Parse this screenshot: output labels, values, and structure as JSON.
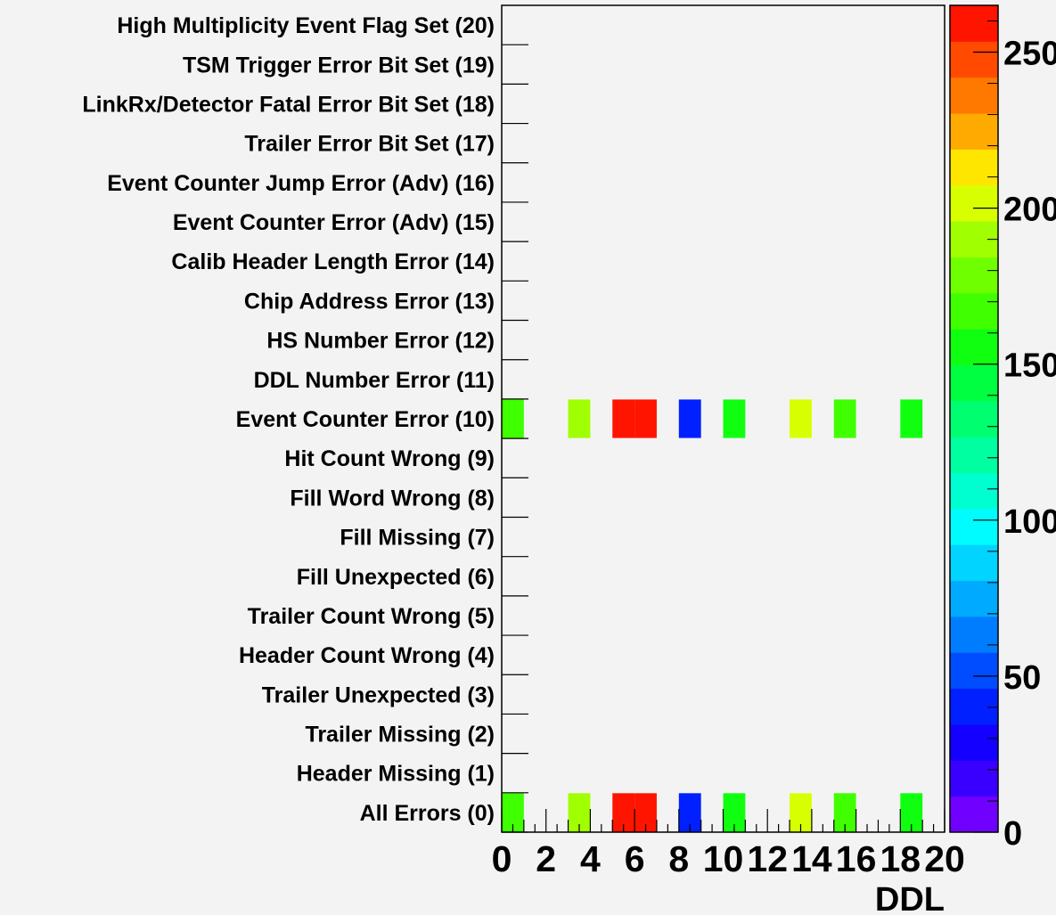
{
  "chart_data": {
    "type": "heatmap",
    "title": "",
    "xlabel": "DDL",
    "ylabel": "",
    "xlim": [
      0,
      20
    ],
    "x_ticks": [
      "0",
      "2",
      "4",
      "6",
      "8",
      "10",
      "12",
      "14",
      "16",
      "18",
      "20"
    ],
    "y_categories": [
      "All Errors (0)",
      "Header Missing (1)",
      "Trailer Missing (2)",
      "Trailer Unexpected (3)",
      "Header Count Wrong (4)",
      "Trailer Count Wrong (5)",
      "Fill Unexpected (6)",
      "Fill Missing (7)",
      "Fill Word Wrong (8)",
      "Hit Count Wrong (9)",
      "Event Counter Error (10)",
      "DDL Number Error (11)",
      "HS Number Error (12)",
      "Chip Address Error (13)",
      "Calib Header Length Error (14)",
      "Event Counter Error (Adv) (15)",
      "Event Counter Jump Error (Adv) (16)",
      "Trailer Error Bit Set (17)",
      "LinkRx/Detector Fatal Error Bit Set (18)",
      "TSM Trigger Error Bit Set (19)",
      "High Multiplicity Event Flag Set (20)"
    ],
    "cells": [
      {
        "ddl": 0,
        "row": 0,
        "value": 170
      },
      {
        "ddl": 3,
        "row": 0,
        "value": 185
      },
      {
        "ddl": 5,
        "row": 0,
        "value": 262
      },
      {
        "ddl": 6,
        "row": 0,
        "value": 262
      },
      {
        "ddl": 8,
        "row": 0,
        "value": 35
      },
      {
        "ddl": 10,
        "row": 0,
        "value": 150
      },
      {
        "ddl": 13,
        "row": 0,
        "value": 205
      },
      {
        "ddl": 15,
        "row": 0,
        "value": 170
      },
      {
        "ddl": 18,
        "row": 0,
        "value": 150
      },
      {
        "ddl": 0,
        "row": 10,
        "value": 170
      },
      {
        "ddl": 3,
        "row": 10,
        "value": 185
      },
      {
        "ddl": 5,
        "row": 10,
        "value": 262
      },
      {
        "ddl": 6,
        "row": 10,
        "value": 262
      },
      {
        "ddl": 8,
        "row": 10,
        "value": 35
      },
      {
        "ddl": 10,
        "row": 10,
        "value": 150
      },
      {
        "ddl": 13,
        "row": 10,
        "value": 205
      },
      {
        "ddl": 15,
        "row": 10,
        "value": 170
      },
      {
        "ddl": 18,
        "row": 10,
        "value": 150
      }
    ],
    "colorbar": {
      "zlim": [
        0,
        265
      ],
      "tick_values": [
        0,
        50,
        100,
        150,
        200,
        250
      ],
      "tick_labels": [
        "0",
        "50",
        "100",
        "150",
        "200",
        "250"
      ],
      "palette": [
        "#7000ff",
        "#3a00ff",
        "#1400ff",
        "#0020ff",
        "#004cff",
        "#007cff",
        "#00aaff",
        "#00d4ff",
        "#00fcff",
        "#00ffd0",
        "#00ffa0",
        "#00ff70",
        "#00ff40",
        "#10ff10",
        "#40ff00",
        "#70ff00",
        "#a0ff00",
        "#d8ff00",
        "#ffe600",
        "#ffaa00",
        "#ff7800",
        "#ff4a00",
        "#ff1400"
      ]
    },
    "grid": false
  }
}
